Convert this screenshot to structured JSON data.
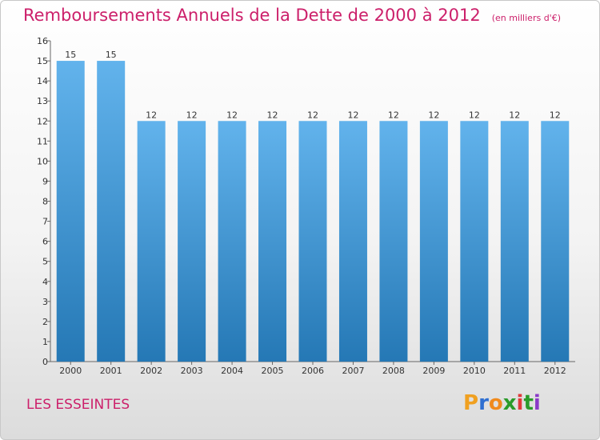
{
  "title": "Remboursements Annuels de la Dette de 2000 à 2012",
  "unit": "(en milliers d'€)",
  "place": "LES ESSEINTES",
  "logo": [
    "P",
    "r",
    "o",
    "x",
    "i",
    "t",
    "i"
  ],
  "colors": {
    "title": "#cc1f6a",
    "bar_top": "#62b3ec",
    "bar_bottom": "#2578b5",
    "logo": [
      "#f0a020",
      "#2f6fd1",
      "#f08a1c",
      "#2a9b2a",
      "#e03a3a",
      "#2a9b2a",
      "#8a3ac8"
    ]
  },
  "chart_data": {
    "type": "bar",
    "categories": [
      "2000",
      "2001",
      "2002",
      "2003",
      "2004",
      "2005",
      "2006",
      "2007",
      "2008",
      "2009",
      "2010",
      "2011",
      "2012"
    ],
    "values": [
      15,
      15,
      12,
      12,
      12,
      12,
      12,
      12,
      12,
      12,
      12,
      12,
      12
    ],
    "data_labels": [
      "15",
      "15",
      "12",
      "12",
      "12",
      "12",
      "12",
      "12",
      "12",
      "12",
      "12",
      "12",
      "12"
    ],
    "yticks": [
      "0",
      "1",
      "2",
      "3",
      "4",
      "5",
      "6",
      "7",
      "8",
      "9",
      "10",
      "11",
      "12",
      "13",
      "14",
      "15",
      "16"
    ],
    "ylim": [
      0,
      16
    ],
    "grid": false
  }
}
